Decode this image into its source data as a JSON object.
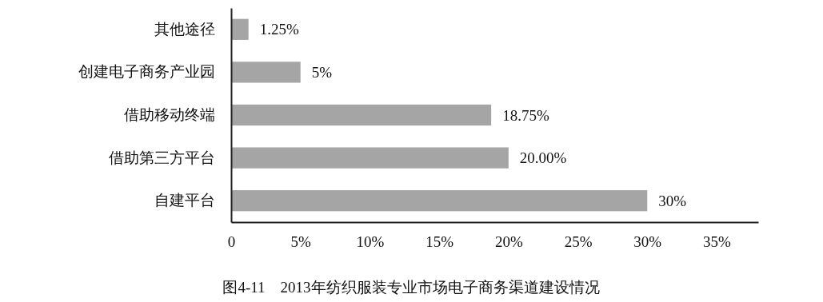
{
  "chart_data": {
    "type": "bar",
    "orientation": "horizontal",
    "title": "图4-11　2013年纺织服装专业市场电子商务渠道建设情况",
    "categories": [
      "其他途径",
      "创建电子商务产业园",
      "借助移动终端",
      "借助第三方平台",
      "自建平台"
    ],
    "values": [
      1.25,
      5,
      18.75,
      20.0,
      30
    ],
    "value_labels": [
      "1.25%",
      "5%",
      "18.75%",
      "20.00%",
      "30%"
    ],
    "color": "#a5a5a5",
    "xlim": [
      0,
      38
    ],
    "xticks": [
      0,
      {
        "value": 5,
        "label": "5%"
      },
      {
        "value": 10,
        "label": "10%"
      },
      {
        "value": 15,
        "label": "15%"
      },
      {
        "value": 20,
        "label": "20%"
      },
      {
        "value": 25,
        "label": "25%"
      },
      {
        "value": 30,
        "label": "30%"
      },
      {
        "value": 35,
        "label": "35%"
      }
    ],
    "grid": false
  }
}
